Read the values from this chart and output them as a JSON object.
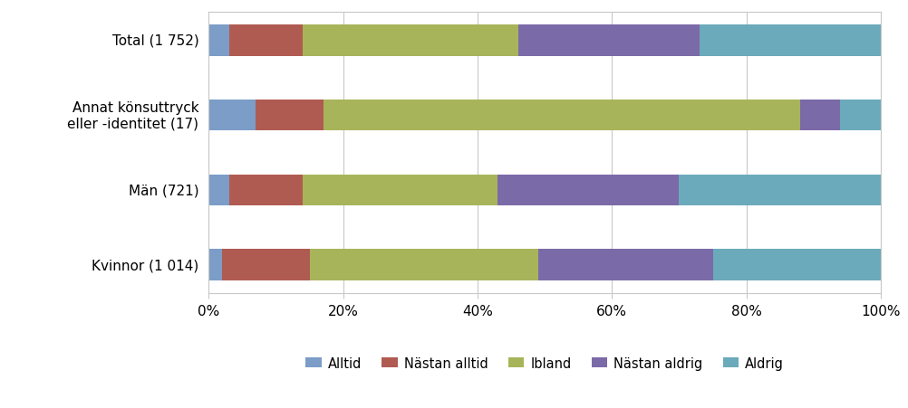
{
  "categories": [
    "Total (1 752)",
    "Annat könsuttryck\neller -identitet (17)",
    "Män (721)",
    "Kvinnor (1 014)"
  ],
  "series": {
    "Alltid": [
      3,
      7,
      3,
      2
    ],
    "Nästan alltid": [
      11,
      10,
      11,
      13
    ],
    "Ibland": [
      32,
      71,
      29,
      34
    ],
    "Nästan aldrig": [
      27,
      6,
      27,
      26
    ],
    "Aldrig": [
      27,
      6,
      30,
      25
    ]
  },
  "colors": {
    "Alltid": "#7B9DC7",
    "Nästan alltid": "#B05B52",
    "Ibland": "#A8B45A",
    "Nästan aldrig": "#7B6AA8",
    "Aldrig": "#6BAABB"
  },
  "legend_order": [
    "Alltid",
    "Nästan alltid",
    "Ibland",
    "Nästan aldrig",
    "Aldrig"
  ],
  "xticks": [
    0,
    20,
    40,
    60,
    80,
    100
  ],
  "xticklabels": [
    "0%",
    "20%",
    "40%",
    "60%",
    "80%",
    "100%"
  ],
  "background_color": "#FFFFFF",
  "bar_background": "#FFFFFF",
  "bar_height": 0.42,
  "figsize": [
    10.02,
    4.52
  ],
  "dpi": 100
}
